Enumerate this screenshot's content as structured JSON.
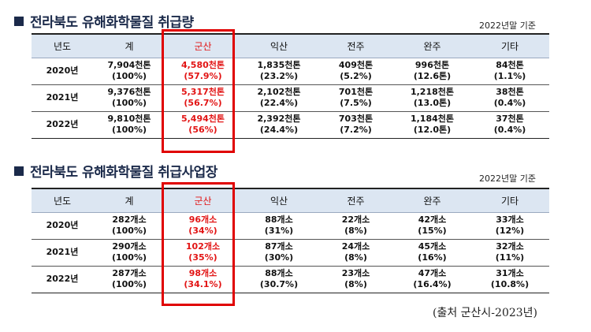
{
  "section1": {
    "title": "전라북도 유해화학물질 취급량",
    "basis": "2022년말 기준",
    "headers": [
      "년도",
      "계",
      "군산",
      "익산",
      "전주",
      "완주",
      "기타"
    ],
    "rows": [
      {
        "year": "2020년",
        "cells": [
          [
            "7,904천톤",
            "(100%)"
          ],
          [
            "4,580천톤",
            "(57.9%)"
          ],
          [
            "1,835천톤",
            "(23.2%)"
          ],
          [
            "409천톤",
            "(5.2%)"
          ],
          [
            "996천톤",
            "(12.6톤)"
          ],
          [
            "84천톤",
            "(1.1%)"
          ]
        ]
      },
      {
        "year": "2021년",
        "cells": [
          [
            "9,376천톤",
            "(100%)"
          ],
          [
            "5,317천톤",
            "(56.7%)"
          ],
          [
            "2,102천톤",
            "(22.4%)"
          ],
          [
            "701천톤",
            "(7.5%)"
          ],
          [
            "1,218천톤",
            "(13.0톤)"
          ],
          [
            "38천톤",
            "(0.4%)"
          ]
        ]
      },
      {
        "year": "2022년",
        "cells": [
          [
            "9,810천톤",
            "(100%)"
          ],
          [
            "5,494천톤",
            "(56%)"
          ],
          [
            "2,392천톤",
            "(24.4%)"
          ],
          [
            "703천톤",
            "(7.2%)"
          ],
          [
            "1,184천톤",
            "(12.0톤)"
          ],
          [
            "37천톤",
            "(0.4%)"
          ]
        ]
      }
    ]
  },
  "section2": {
    "title": "전라북도 유해화학물질 취급사업장",
    "basis": "2022년말 기준",
    "headers": [
      "년도",
      "계",
      "군산",
      "익산",
      "전주",
      "완주",
      "기타"
    ],
    "rows": [
      {
        "year": "2020년",
        "cells": [
          [
            "282개소",
            "(100%)"
          ],
          [
            "96개소",
            "(34%)"
          ],
          [
            "88개소",
            "(31%)"
          ],
          [
            "22개소",
            "(8%)"
          ],
          [
            "42개소",
            "(15%)"
          ],
          [
            "33개소",
            "(12%)"
          ]
        ]
      },
      {
        "year": "2021년",
        "cells": [
          [
            "290개소",
            "(100%)"
          ],
          [
            "102개소",
            "(35%)"
          ],
          [
            "87개소",
            "(30%)"
          ],
          [
            "24개소",
            "(8%)"
          ],
          [
            "45개소",
            "(16%)"
          ],
          [
            "32개소",
            "(11%)"
          ]
        ]
      },
      {
        "year": "2022년",
        "cells": [
          [
            "287개소",
            "(100%)"
          ],
          [
            "98개소",
            "(34.1%)"
          ],
          [
            "88개소",
            "(30.7%)"
          ],
          [
            "23개소",
            "(8%)"
          ],
          [
            "47개소",
            "(16.4%)"
          ],
          [
            "31개소",
            "(10.8%)"
          ]
        ]
      }
    ]
  },
  "source": "(출처  군산시-2023년)",
  "colors": {
    "highlight": "#e00000",
    "header_bg": "#dce6f2",
    "title": "#1b2a4a",
    "red_text": "#e21414"
  }
}
